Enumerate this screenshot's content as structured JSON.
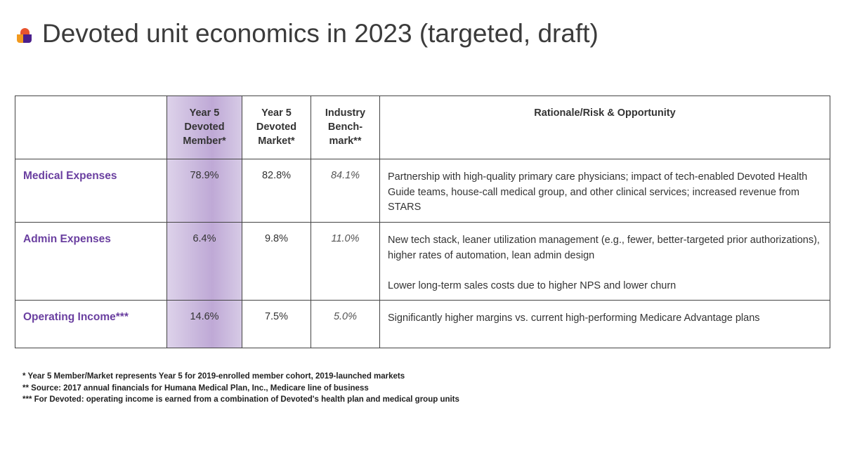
{
  "title": "Devoted unit economics in 2023 (targeted, draft)",
  "logo": {
    "icon": "devoted-logo-icon",
    "colors": [
      "#e8542e",
      "#f29a1e",
      "#4b1f8c"
    ]
  },
  "colors": {
    "accent_purple": "#6a3fa0",
    "highlight_column": "#c8b6dc"
  },
  "table": {
    "headers": {
      "label": "",
      "member_line1": "Year 5",
      "member_line2": "Devoted",
      "member_line3": "Member*",
      "market_line1": "Year 5",
      "market_line2": "Devoted",
      "market_line3": "Market*",
      "bench_line1": "Industry",
      "bench_line2": "Bench-",
      "bench_line3": "mark**",
      "rationale": "Rationale/Risk & Opportunity"
    },
    "rows": [
      {
        "label": "Medical Expenses",
        "member": "78.9%",
        "market": "82.8%",
        "benchmark": "84.1%",
        "rationale": [
          "Partnership with high-quality primary care physicians; impact of tech-enabled Devoted Health Guide teams, house-call medical group, and other clinical services; increased revenue from STARS"
        ]
      },
      {
        "label": "Admin Expenses",
        "member": "6.4%",
        "market": "9.8%",
        "benchmark": "11.0%",
        "rationale": [
          "New tech stack, leaner utilization management (e.g., fewer, better-targeted prior authorizations), higher rates of automation, lean admin design",
          "Lower long-term sales costs due to higher NPS and lower churn"
        ]
      },
      {
        "label": "Operating Income***",
        "member": "14.6%",
        "market": "7.5%",
        "benchmark": "5.0%",
        "rationale": [
          "Significantly higher margins vs. current high-performing Medicare Advantage plans"
        ]
      }
    ]
  },
  "footnotes": [
    "* Year 5 Member/Market represents Year 5 for 2019-enrolled member cohort, 2019-launched markets",
    "** Source:  2017 annual financials for Humana Medical Plan, Inc., Medicare line of business",
    "*** For Devoted:  operating income is earned from a combination of Devoted's health plan and medical group units"
  ]
}
